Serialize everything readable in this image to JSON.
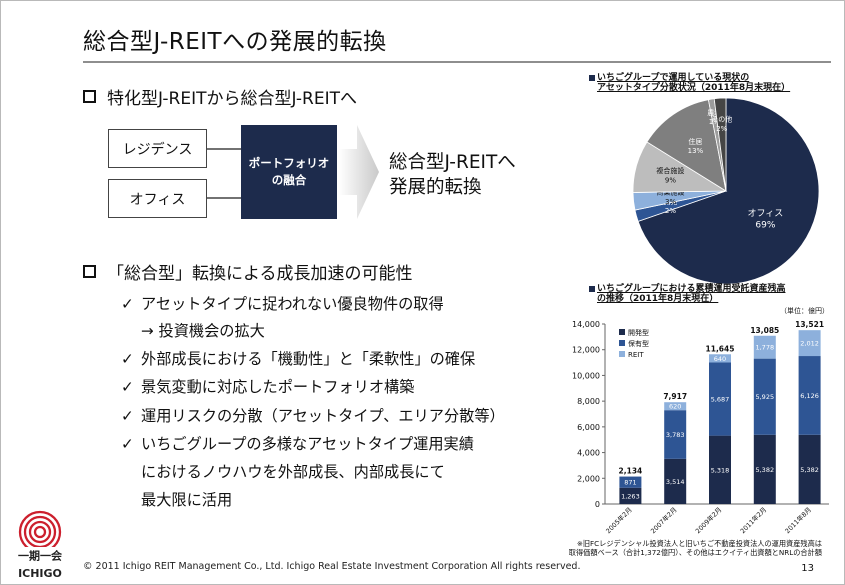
{
  "slide": {
    "title": "総合型J-REITへの発展的転換",
    "page_number": "13",
    "footer": "© 2011 Ichigo REIT Management Co., Ltd.  Ichigo Real Estate Investment Corporation  All rights reserved."
  },
  "section1": {
    "heading": "特化型J-REITから総合型J-REITへ",
    "box_residence": "レジデンス",
    "box_office": "オフィス",
    "merge_line1": "ポートフォリオ",
    "merge_line2": "の融合",
    "result_line1": "総合型J-REITへ",
    "result_line2": "発展的転換"
  },
  "section2": {
    "heading": "「総合型」転換による成長加速の可能性",
    "check_symbol": "✓",
    "items": [
      "アセットタイプに捉われない優良物件の取得",
      "→ 投資機会の拡大",
      "外部成長における「機動性」と「柔軟性」の確保",
      "景気変動に対応したポートフォリオ構築",
      "運用リスクの分散（アセットタイプ、エリア分散等）",
      "いちごグループの多様なアセットタイプ運用実績",
      "におけるノウハウを外部成長、内部成長にて",
      "最大限に活用"
    ]
  },
  "logo": {
    "kanji": "一期一会",
    "name": "ICHIGO",
    "color": "#cc1f2d"
  },
  "colors": {
    "navy": "#1d2b4c",
    "blue": "#2e5594",
    "light_blue": "#8db0dc",
    "gray": "#bdbdbd",
    "dark_gray": "#7f7f7f",
    "mid_gray": "#9c9c9c"
  },
  "chart_data": [
    {
      "type": "pie",
      "title_line1": "いちごグループで運用している現状の",
      "title_line2": "アセットタイプ分散状況（2011年8月末現在）",
      "slices": [
        {
          "name": "オフィス",
          "value": 69,
          "label": "69%",
          "color": "#1d2b4c"
        },
        {
          "name": "開発",
          "value": 2,
          "label": "2%",
          "color": "#2e5594"
        },
        {
          "name": "商業施設",
          "value": 3,
          "label": "3%",
          "color": "#8db0dc"
        },
        {
          "name": "複合施設",
          "value": 9,
          "label": "9%",
          "color": "#bdbdbd"
        },
        {
          "name": "住居",
          "value": 13,
          "label": "13%",
          "color": "#7f7f7f"
        },
        {
          "name": "農地",
          "value": 1,
          "label": "1%",
          "color": "#9c9c9c"
        },
        {
          "name": "その他",
          "value": 2,
          "label": "2%",
          "color": "#454545"
        }
      ]
    },
    {
      "type": "bar",
      "stacked": true,
      "title_line1": "いちごグループにおける累積運用受託資産残高",
      "title_line2": "の推移（2011年8月末現在）",
      "unit": "（単位：億円）",
      "categories": [
        "2005年2月",
        "2007年2月",
        "2009年2月",
        "2011年2月",
        "2011年8月"
      ],
      "series": [
        {
          "name": "開発型",
          "color": "#1d2b4c",
          "values": [
            1263,
            3514,
            5318,
            5382,
            5382
          ]
        },
        {
          "name": "保有型",
          "color": "#2e5594",
          "values": [
            871,
            3783,
            5687,
            5925,
            6126
          ]
        },
        {
          "name": "REIT",
          "color": "#8db0dc",
          "values": [
            0,
            620,
            640,
            1778,
            2012
          ]
        }
      ],
      "segment_labels": [
        [
          "1,263",
          "3,514",
          "5,318",
          "5,382",
          "5,382"
        ],
        [
          "871",
          "3,783",
          "5,687",
          "5,925",
          "6,126"
        ],
        [
          "",
          "620",
          "640",
          "1,778",
          "2,012"
        ]
      ],
      "totals": [
        "2,134",
        "7,917",
        "11,645",
        "13,085",
        "13,521"
      ],
      "total_values": [
        2134,
        7917,
        11645,
        13085,
        13521
      ],
      "ylim": [
        0,
        14000
      ],
      "yticks": [
        0,
        2000,
        4000,
        6000,
        8000,
        10000,
        12000,
        14000
      ],
      "ytick_labels": [
        "0",
        "2,000",
        "4,000",
        "6,000",
        "8,000",
        "10,000",
        "12,000",
        "14,000"
      ],
      "note_line1": "※旧FCレジデンシャル投資法人と旧いちご不動産投資法人の運用資産残高は",
      "note_line2": "取得価額ベース（合計1,372億円）、その他はエクイティ出資額とNRLの合計額"
    }
  ]
}
